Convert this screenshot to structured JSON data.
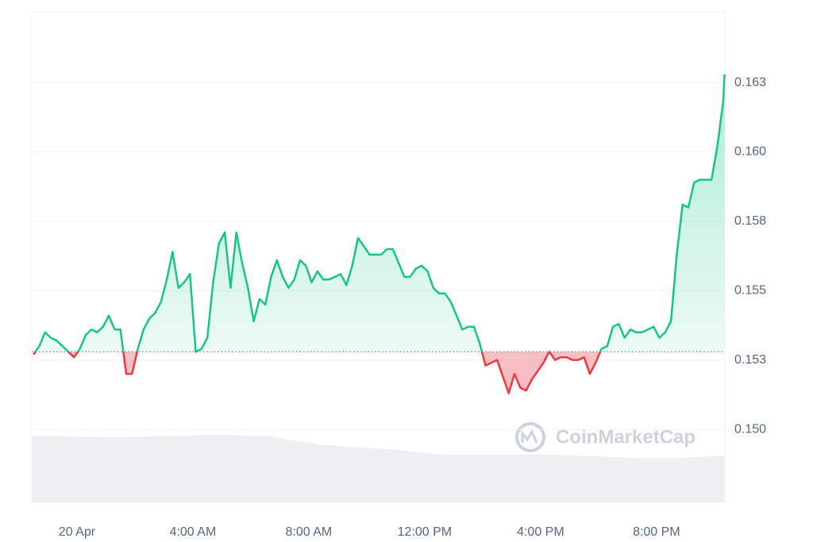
{
  "chart_data": {
    "type": "line",
    "x": [
      -1.5,
      -1.3,
      -1.1,
      -0.9,
      -0.7,
      -0.5,
      -0.3,
      -0.1,
      0.1,
      0.3,
      0.5,
      0.7,
      0.9,
      1.1,
      1.3,
      1.5,
      1.7,
      1.9,
      2.1,
      2.3,
      2.5,
      2.7,
      2.9,
      3.1,
      3.3,
      3.5,
      3.7,
      3.9,
      4.1,
      4.3,
      4.5,
      4.7,
      4.9,
      5.1,
      5.3,
      5.5,
      5.7,
      5.9,
      6.1,
      6.3,
      6.5,
      6.7,
      6.9,
      7.1,
      7.3,
      7.5,
      7.7,
      7.9,
      8.1,
      8.3,
      8.5,
      8.7,
      8.9,
      9.1,
      9.3,
      9.5,
      9.7,
      9.9,
      10.1,
      10.3,
      10.5,
      10.7,
      10.9,
      11.1,
      11.3,
      11.5,
      11.7,
      11.9,
      12.1,
      12.3,
      12.5,
      12.7,
      12.9,
      13.1,
      13.3,
      13.5,
      13.7,
      13.9,
      14.1,
      14.3,
      14.5,
      14.7,
      14.9,
      15.1,
      15.3,
      15.5,
      15.7,
      15.9,
      16.1,
      16.3,
      16.5,
      16.7,
      16.9,
      17.1,
      17.3,
      17.5,
      17.7,
      17.9,
      18.1,
      18.3,
      18.5,
      18.7,
      18.9,
      19.1,
      19.3,
      19.5,
      19.7,
      19.9,
      20.1,
      20.3,
      20.5,
      20.7,
      20.9,
      21.1,
      21.3,
      21.5,
      21.7,
      21.9,
      22.1,
      22.3,
      22.35
    ],
    "series": [
      {
        "color": "#16c784",
        "negative_color": "#ea3943",
        "values": [
          0.1527,
          0.153,
          0.1535,
          0.1533,
          0.1532,
          0.153,
          0.1528,
          0.1526,
          0.1529,
          0.1534,
          0.1536,
          0.1535,
          0.1537,
          0.1541,
          0.1536,
          0.1536,
          0.152,
          0.152,
          0.1529,
          0.1536,
          0.154,
          0.1542,
          0.1546,
          0.1554,
          0.1564,
          0.1551,
          0.1553,
          0.1556,
          0.1528,
          0.1529,
          0.1533,
          0.1553,
          0.1567,
          0.1571,
          0.1551,
          0.1571,
          0.156,
          0.1551,
          0.1539,
          0.1547,
          0.1545,
          0.1555,
          0.1561,
          0.1555,
          0.1551,
          0.1554,
          0.1561,
          0.1559,
          0.1553,
          0.1557,
          0.1554,
          0.1554,
          0.1555,
          0.1556,
          0.1552,
          0.1559,
          0.1569,
          0.1566,
          0.1563,
          0.1563,
          0.1563,
          0.1565,
          0.1565,
          0.156,
          0.1555,
          0.1555,
          0.1558,
          0.1559,
          0.1557,
          0.1551,
          0.1549,
          0.1549,
          0.1546,
          0.1541,
          0.1536,
          0.1537,
          0.1537,
          0.1531,
          0.1523,
          0.1524,
          0.1525,
          0.1519,
          0.1513,
          0.152,
          0.1515,
          0.1514,
          0.1518,
          0.1521,
          0.1524,
          0.1528,
          0.1525,
          0.1526,
          0.1526,
          0.1525,
          0.1525,
          0.1526,
          0.152,
          0.1524,
          0.1529,
          0.153,
          0.1537,
          0.1538,
          0.1533,
          0.1536,
          0.1535,
          0.1535,
          0.1536,
          0.1537,
          0.1533,
          0.1535,
          0.1539,
          0.1563,
          0.1581,
          0.158,
          0.1589,
          0.159,
          0.159,
          0.159,
          0.1602,
          0.1618,
          0.1628
        ]
      }
    ],
    "baseline": 0.1528,
    "xlim": [
      -1.56,
      22.36
    ],
    "ylim": [
      0.14737,
      0.16505
    ],
    "xticks": [
      {
        "value": 0,
        "label": "20 Apr"
      },
      {
        "value": 4,
        "label": "4:00 AM"
      },
      {
        "value": 8,
        "label": "8:00 AM"
      },
      {
        "value": 12,
        "label": "12:00 PM"
      },
      {
        "value": 16,
        "label": "4:00 PM"
      },
      {
        "value": 20,
        "label": "8:00 PM"
      }
    ],
    "yticks": [
      {
        "value": 0.15,
        "label": "0.150"
      },
      {
        "value": 0.1525,
        "label": "0.153"
      },
      0.155,
      {
        "value": 0.1575,
        "label": "0.158"
      },
      {
        "value": 0.16,
        "label": "0.160"
      },
      {
        "value": 0.1625,
        "label": "0.163"
      }
    ],
    "grid": true,
    "watermark": "CoinMarketCap"
  }
}
